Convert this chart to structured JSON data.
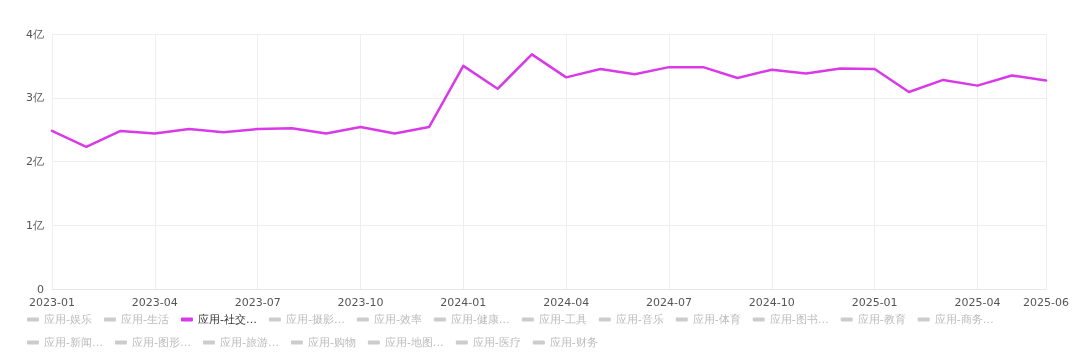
{
  "chart_data": {
    "type": "line",
    "categories": [
      "2023-01",
      null,
      null,
      "2023-04",
      null,
      null,
      "2023-07",
      null,
      null,
      "2023-10",
      null,
      null,
      "2024-01",
      null,
      null,
      "2024-04",
      null,
      null,
      "2024-07",
      null,
      null,
      "2024-10",
      null,
      null,
      "2025-01",
      null,
      null,
      "2025-04",
      null,
      "2025-06"
    ],
    "ylim": [
      0,
      4
    ],
    "yticks": [
      0,
      {
        "value": 1,
        "label": "1亿"
      },
      {
        "value": 2,
        "label": "2亿"
      },
      {
        "value": 3,
        "label": "3亿"
      },
      {
        "value": 4,
        "label": "4亿"
      }
    ],
    "grid": true,
    "legend": "bottom",
    "marker": "none",
    "line_style": "solid",
    "series": [
      {
        "name": "应用-娱乐",
        "color": "#cccccc",
        "values": [
          null,
          null,
          null,
          null,
          null,
          null,
          null,
          null,
          null,
          null,
          null,
          null,
          null,
          null,
          null,
          null,
          null,
          null,
          null,
          null,
          null,
          null,
          null,
          null,
          null,
          null,
          null,
          null,
          null,
          null
        ]
      },
      {
        "name": "应用-生活",
        "color": "#cccccc",
        "values": [
          null,
          null,
          null,
          null,
          null,
          null,
          null,
          null,
          null,
          null,
          null,
          null,
          null,
          null,
          null,
          null,
          null,
          null,
          null,
          null,
          null,
          null,
          null,
          null,
          null,
          null,
          null,
          null,
          null,
          null
        ]
      },
      {
        "name": "应用-社交…",
        "color": "#d93ae8",
        "values": [
          2.48,
          2.23,
          2.48,
          2.44,
          2.51,
          2.46,
          2.51,
          2.52,
          2.44,
          2.54,
          2.44,
          2.54,
          3.5,
          3.14,
          3.68,
          3.32,
          3.45,
          3.37,
          3.48,
          3.48,
          3.31,
          3.44,
          3.38,
          3.46,
          3.45,
          3.09,
          3.28,
          3.19,
          3.35,
          3.27
        ]
      },
      {
        "name": "应用-摄影…",
        "color": "#cccccc",
        "values": [
          null,
          null,
          null,
          null,
          null,
          null,
          null,
          null,
          null,
          null,
          null,
          null,
          null,
          null,
          null,
          null,
          null,
          null,
          null,
          null,
          null,
          null,
          null,
          null,
          null,
          null,
          null,
          null,
          null,
          null
        ]
      },
      {
        "name": "应用-效率",
        "color": "#cccccc",
        "values": [
          null,
          null,
          null,
          null,
          null,
          null,
          null,
          null,
          null,
          null,
          null,
          null,
          null,
          null,
          null,
          null,
          null,
          null,
          null,
          null,
          null,
          null,
          null,
          null,
          null,
          null,
          null,
          null,
          null,
          null
        ]
      },
      {
        "name": "应用-健康…",
        "color": "#cccccc",
        "values": [
          null,
          null,
          null,
          null,
          null,
          null,
          null,
          null,
          null,
          null,
          null,
          null,
          null,
          null,
          null,
          null,
          null,
          null,
          null,
          null,
          null,
          null,
          null,
          null,
          null,
          null,
          null,
          null,
          null,
          null
        ]
      },
      {
        "name": "应用-工具",
        "color": "#cccccc",
        "values": [
          null,
          null,
          null,
          null,
          null,
          null,
          null,
          null,
          null,
          null,
          null,
          null,
          null,
          null,
          null,
          null,
          null,
          null,
          null,
          null,
          null,
          null,
          null,
          null,
          null,
          null,
          null,
          null,
          null,
          null
        ]
      },
      {
        "name": "应用-音乐",
        "color": "#cccccc",
        "values": [
          null,
          null,
          null,
          null,
          null,
          null,
          null,
          null,
          null,
          null,
          null,
          null,
          null,
          null,
          null,
          null,
          null,
          null,
          null,
          null,
          null,
          null,
          null,
          null,
          null,
          null,
          null,
          null,
          null,
          null
        ]
      },
      {
        "name": "应用-体育",
        "color": "#cccccc",
        "values": [
          null,
          null,
          null,
          null,
          null,
          null,
          null,
          null,
          null,
          null,
          null,
          null,
          null,
          null,
          null,
          null,
          null,
          null,
          null,
          null,
          null,
          null,
          null,
          null,
          null,
          null,
          null,
          null,
          null,
          null
        ]
      },
      {
        "name": "应用-图书…",
        "color": "#cccccc",
        "values": [
          null,
          null,
          null,
          null,
          null,
          null,
          null,
          null,
          null,
          null,
          null,
          null,
          null,
          null,
          null,
          null,
          null,
          null,
          null,
          null,
          null,
          null,
          null,
          null,
          null,
          null,
          null,
          null,
          null,
          null
        ]
      },
      {
        "name": "应用-教育",
        "color": "#cccccc",
        "values": [
          null,
          null,
          null,
          null,
          null,
          null,
          null,
          null,
          null,
          null,
          null,
          null,
          null,
          null,
          null,
          null,
          null,
          null,
          null,
          null,
          null,
          null,
          null,
          null,
          null,
          null,
          null,
          null,
          null,
          null
        ]
      },
      {
        "name": "应用-商务…",
        "color": "#cccccc",
        "values": [
          null,
          null,
          null,
          null,
          null,
          null,
          null,
          null,
          null,
          null,
          null,
          null,
          null,
          null,
          null,
          null,
          null,
          null,
          null,
          null,
          null,
          null,
          null,
          null,
          null,
          null,
          null,
          null,
          null,
          null
        ]
      },
      {
        "name": "应用-新闻…",
        "color": "#cccccc",
        "values": [
          null,
          null,
          null,
          null,
          null,
          null,
          null,
          null,
          null,
          null,
          null,
          null,
          null,
          null,
          null,
          null,
          null,
          null,
          null,
          null,
          null,
          null,
          null,
          null,
          null,
          null,
          null,
          null,
          null,
          null
        ]
      },
      {
        "name": "应用-图形…",
        "color": "#cccccc",
        "values": [
          null,
          null,
          null,
          null,
          null,
          null,
          null,
          null,
          null,
          null,
          null,
          null,
          null,
          null,
          null,
          null,
          null,
          null,
          null,
          null,
          null,
          null,
          null,
          null,
          null,
          null,
          null,
          null,
          null,
          null
        ]
      },
      {
        "name": "应用-旅游…",
        "color": "#cccccc",
        "values": [
          null,
          null,
          null,
          null,
          null,
          null,
          null,
          null,
          null,
          null,
          null,
          null,
          null,
          null,
          null,
          null,
          null,
          null,
          null,
          null,
          null,
          null,
          null,
          null,
          null,
          null,
          null,
          null,
          null,
          null
        ]
      },
      {
        "name": "应用-购物",
        "color": "#cccccc",
        "values": [
          null,
          null,
          null,
          null,
          null,
          null,
          null,
          null,
          null,
          null,
          null,
          null,
          null,
          null,
          null,
          null,
          null,
          null,
          null,
          null,
          null,
          null,
          null,
          null,
          null,
          null,
          null,
          null,
          null,
          null
        ]
      },
      {
        "name": "应用-地图…",
        "color": "#cccccc",
        "values": [
          null,
          null,
          null,
          null,
          null,
          null,
          null,
          null,
          null,
          null,
          null,
          null,
          null,
          null,
          null,
          null,
          null,
          null,
          null,
          null,
          null,
          null,
          null,
          null,
          null,
          null,
          null,
          null,
          null,
          null
        ]
      },
      {
        "name": "应用-医疗",
        "color": "#cccccc",
        "values": [
          null,
          null,
          null,
          null,
          null,
          null,
          null,
          null,
          null,
          null,
          null,
          null,
          null,
          null,
          null,
          null,
          null,
          null,
          null,
          null,
          null,
          null,
          null,
          null,
          null,
          null,
          null,
          null,
          null,
          null
        ]
      },
      {
        "name": "应用-财务",
        "color": "#cccccc",
        "values": [
          null,
          null,
          null,
          null,
          null,
          null,
          null,
          null,
          null,
          null,
          null,
          null,
          null,
          null,
          null,
          null,
          null,
          null,
          null,
          null,
          null,
          null,
          null,
          null,
          null,
          null,
          null,
          null,
          null,
          null
        ]
      }
    ]
  }
}
